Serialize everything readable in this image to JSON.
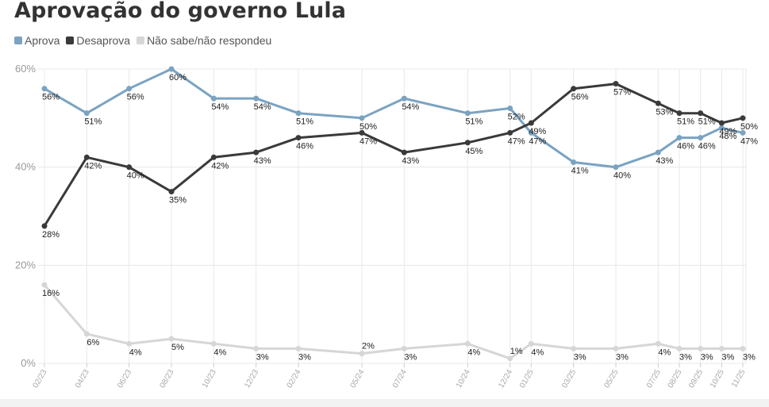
{
  "chart_data": {
    "type": "line",
    "title": "Aprovação do governo Lula",
    "ylim": [
      0,
      60
    ],
    "yticks": [
      "0%",
      "20%",
      "40%",
      "60%"
    ],
    "ytick_values": [
      0,
      20,
      40,
      60
    ],
    "legend_position": "top-left",
    "grid": true,
    "x": [
      "02/23",
      "04/23",
      "06/23",
      "08/23",
      "10/23",
      "12/23",
      "02/24",
      "05/24",
      "07/24",
      "10/24",
      "12/24",
      "01/25",
      "03/25",
      "05/25",
      "07/25",
      "08/25",
      "09/25",
      "10/25",
      "11/25"
    ],
    "x_month_index": [
      0,
      2,
      4,
      6,
      8,
      10,
      12,
      15,
      17,
      20,
      22,
      23,
      25,
      27,
      29,
      30,
      31,
      32,
      33
    ],
    "series": [
      {
        "name": "Aprova",
        "color": "#7aa3c2",
        "values": [
          56,
          51,
          56,
          60,
          54,
          54,
          51,
          50,
          54,
          51,
          52,
          47,
          41,
          40,
          43,
          46,
          46,
          48,
          47
        ],
        "labels": [
          "56%",
          "51%",
          "56%",
          "60%",
          "54%",
          "54%",
          "51%",
          "50%",
          "54%",
          "51%",
          "52%",
          "47%",
          "41%",
          "40%",
          "43%",
          "46%",
          "46%",
          "48%",
          "47%"
        ]
      },
      {
        "name": "Desaprova",
        "color": "#3a3a3a",
        "values": [
          28,
          42,
          40,
          35,
          42,
          43,
          46,
          47,
          43,
          45,
          47,
          49,
          56,
          57,
          53,
          51,
          51,
          49,
          50
        ],
        "labels": [
          "28%",
          "42%",
          "40%",
          "35%",
          "42%",
          "43%",
          "46%",
          "47%",
          "43%",
          "45%",
          "47%",
          "49%",
          "56%",
          "57%",
          "53%",
          "51%",
          "51%",
          "49%",
          "50%"
        ]
      },
      {
        "name": "Não sabe/não respondeu",
        "color": "#d6d6d6",
        "values": [
          16,
          6,
          4,
          5,
          4,
          3,
          3,
          2,
          3,
          4,
          1,
          4,
          3,
          3,
          4,
          3,
          3,
          3,
          3
        ],
        "labels": [
          "16%",
          "6%",
          "4%",
          "5%",
          "4%",
          "3%",
          "3%",
          "2%",
          "3%",
          "4%",
          "1%",
          "4%",
          "3%",
          "3%",
          "4%",
          "3%",
          "3%",
          "3%",
          "3%"
        ]
      }
    ]
  }
}
